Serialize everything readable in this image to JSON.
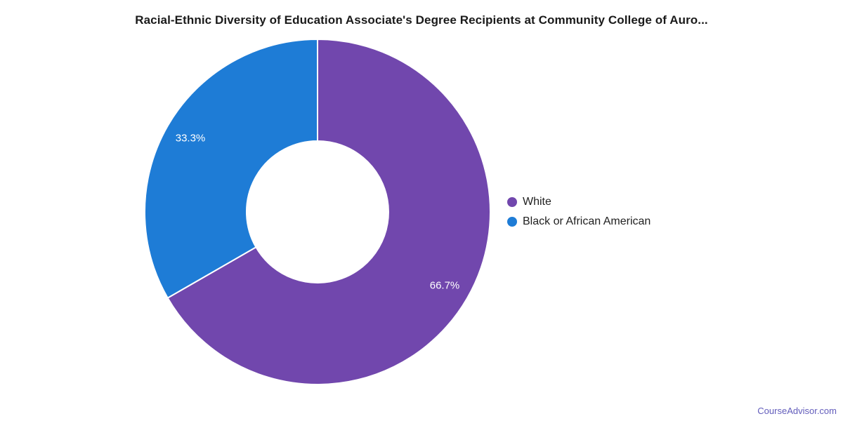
{
  "title": "Racial-Ethnic Diversity of Education Associate's Degree Recipients at Community College of Auro...",
  "footer": {
    "link_label": "CourseAdvisor.com",
    "link_color": "#625cbb"
  },
  "chart_data": {
    "type": "pie",
    "subtype": "donut",
    "title": "Racial-Ethnic Diversity of Education Associate's Degree Recipients at Community College of Auro...",
    "slices": [
      {
        "label": "White",
        "value": 66.7,
        "display": "66.7%",
        "color": "#7147ad"
      },
      {
        "label": "Black or African American",
        "value": 33.3,
        "display": "33.3%",
        "color": "#1e7cd6"
      }
    ],
    "start_angle_deg": 0,
    "direction": "clockwise",
    "inner_radius_ratio": 0.41,
    "slice_border_color": "#ffffff",
    "label_color": "#ffffff",
    "legend_position": "right",
    "background_color": "#ffffff",
    "title_color": "#1a1a1a",
    "legend_text_color": "#212121"
  }
}
